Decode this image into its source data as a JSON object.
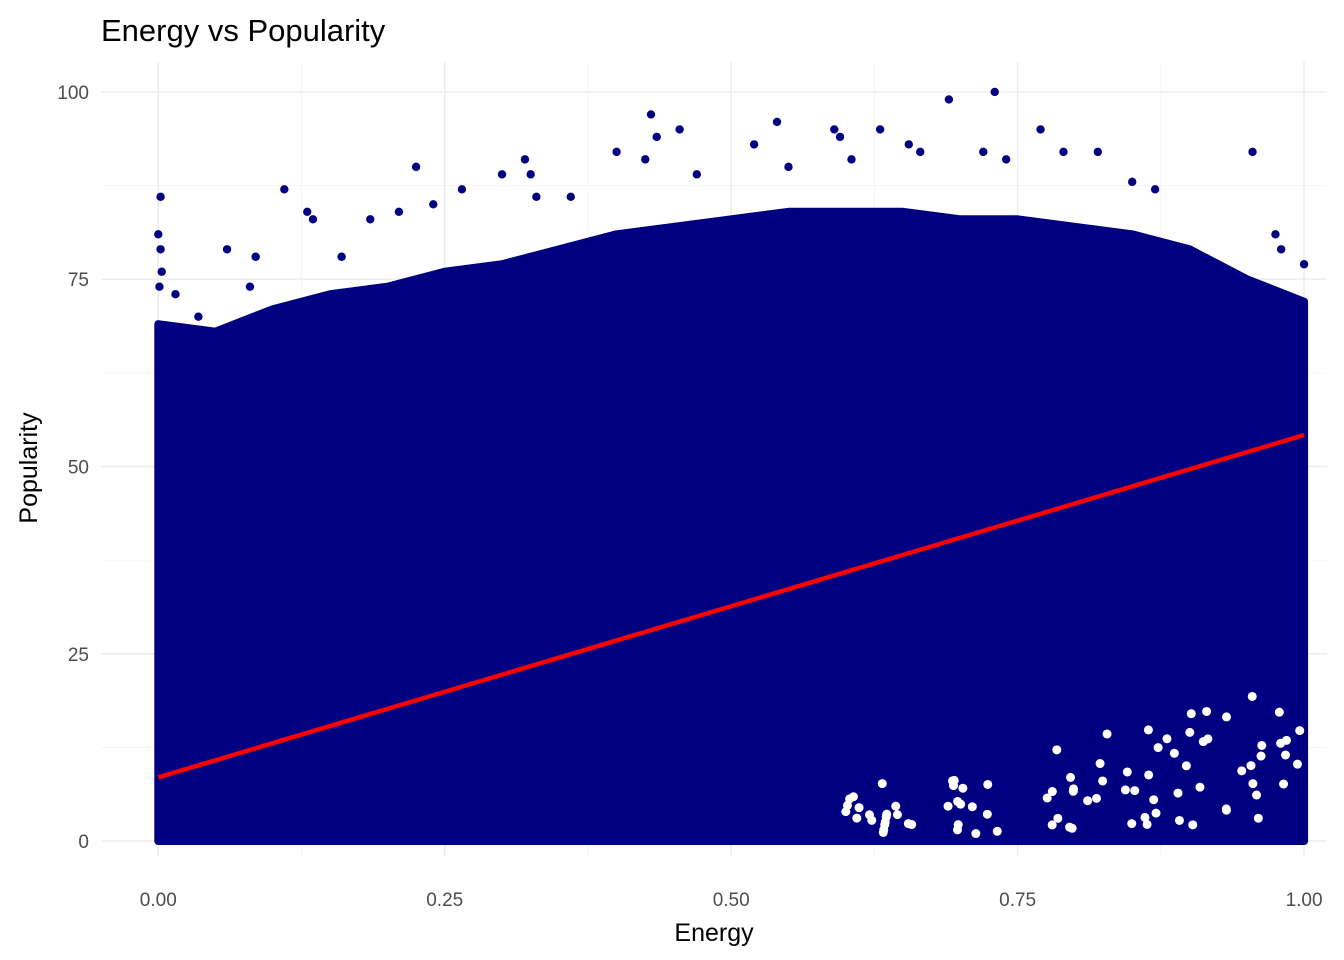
{
  "chart_data": {
    "type": "scatter",
    "title": "Energy vs Popularity",
    "xlabel": "Energy",
    "ylabel": "Popularity",
    "xlim": [
      -0.05,
      1.02
    ],
    "ylim": [
      -2,
      104
    ],
    "x_ticks": [
      0.0,
      0.25,
      0.5,
      0.75,
      1.0
    ],
    "x_tick_labels": [
      "0.00",
      "0.25",
      "0.50",
      "0.75",
      "1.00"
    ],
    "y_ticks": [
      0,
      25,
      50,
      75,
      100
    ],
    "y_tick_labels": [
      "0",
      "25",
      "50",
      "75",
      "100"
    ],
    "grid": true,
    "legend": "none",
    "colors": {
      "points": "#000080",
      "trend": "#ff0000"
    },
    "upper_envelope": [
      [
        0.0,
        69
      ],
      [
        0.05,
        68
      ],
      [
        0.1,
        71
      ],
      [
        0.15,
        73
      ],
      [
        0.2,
        74
      ],
      [
        0.25,
        76
      ],
      [
        0.3,
        77
      ],
      [
        0.35,
        79
      ],
      [
        0.4,
        81
      ],
      [
        0.45,
        82
      ],
      [
        0.5,
        83
      ],
      [
        0.55,
        84
      ],
      [
        0.6,
        84
      ],
      [
        0.65,
        84
      ],
      [
        0.7,
        83
      ],
      [
        0.75,
        83
      ],
      [
        0.8,
        82
      ],
      [
        0.85,
        81
      ],
      [
        0.9,
        79
      ],
      [
        0.95,
        75
      ],
      [
        1.0,
        72
      ]
    ],
    "outlier_points": [
      [
        0.002,
        86
      ],
      [
        0.0,
        81
      ],
      [
        0.002,
        79
      ],
      [
        0.003,
        76
      ],
      [
        0.001,
        74
      ],
      [
        0.015,
        73
      ],
      [
        0.035,
        70
      ],
      [
        0.06,
        79
      ],
      [
        0.08,
        74
      ],
      [
        0.085,
        78
      ],
      [
        0.11,
        87
      ],
      [
        0.13,
        84
      ],
      [
        0.135,
        83
      ],
      [
        0.16,
        78
      ],
      [
        0.185,
        83
      ],
      [
        0.21,
        84
      ],
      [
        0.225,
        90
      ],
      [
        0.24,
        85
      ],
      [
        0.265,
        87
      ],
      [
        0.3,
        89
      ],
      [
        0.32,
        91
      ],
      [
        0.325,
        89
      ],
      [
        0.33,
        86
      ],
      [
        0.36,
        86
      ],
      [
        0.4,
        92
      ],
      [
        0.43,
        97
      ],
      [
        0.435,
        94
      ],
      [
        0.425,
        91
      ],
      [
        0.455,
        95
      ],
      [
        0.47,
        89
      ],
      [
        0.52,
        93
      ],
      [
        0.54,
        96
      ],
      [
        0.55,
        90
      ],
      [
        0.59,
        95
      ],
      [
        0.595,
        94
      ],
      [
        0.605,
        91
      ],
      [
        0.63,
        95
      ],
      [
        0.655,
        93
      ],
      [
        0.665,
        92
      ],
      [
        0.69,
        99
      ],
      [
        0.73,
        100
      ],
      [
        0.72,
        92
      ],
      [
        0.74,
        91
      ],
      [
        0.77,
        95
      ],
      [
        0.79,
        92
      ],
      [
        0.82,
        92
      ],
      [
        0.85,
        88
      ],
      [
        0.87,
        87
      ],
      [
        0.955,
        92
      ],
      [
        0.975,
        81
      ],
      [
        0.98,
        79
      ],
      [
        1.0,
        77
      ]
    ],
    "lower_sparse_region": {
      "x": [
        0.6,
        1.0
      ],
      "y": [
        0,
        25
      ]
    },
    "trend_line": {
      "x": [
        0.0,
        1.0
      ],
      "y": [
        8.5,
        54.2
      ]
    }
  }
}
